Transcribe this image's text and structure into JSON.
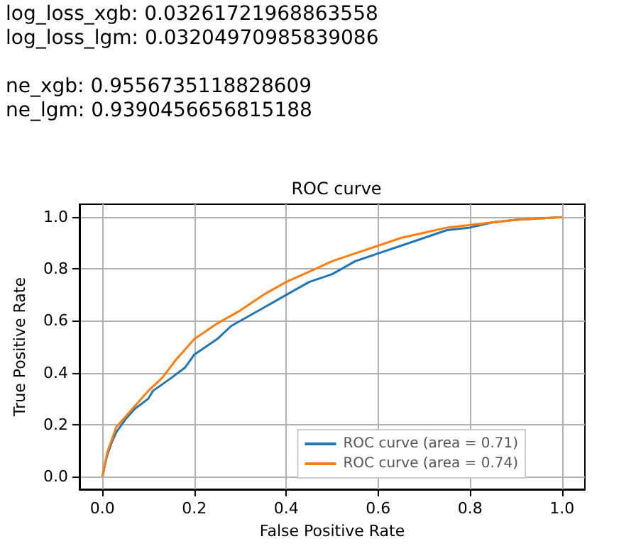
{
  "chart_data": {
    "type": "line",
    "title": "ROC curve",
    "xlabel": "False Positive Rate",
    "ylabel": "True Positive Rate",
    "annotations": [
      "log_loss_xgb: 0.03261721968863558\nlog_loss_lgm: 0.03204970985839086",
      "ne_xgb: 0.9556735118828609\nne_lgm: 0.9390456656815188"
    ],
    "series": [
      {
        "name": "ROC curve (area = 0.71)",
        "color": "#1f77b4",
        "x": [
          0,
          0.01,
          0.02,
          0.03,
          0.05,
          0.07,
          0.1,
          0.11,
          0.15,
          0.18,
          0.2,
          0.25,
          0.28,
          0.3,
          0.35,
          0.4,
          0.45,
          0.5,
          0.55,
          0.6,
          0.65,
          0.7,
          0.75,
          0.8,
          0.85,
          0.9,
          1
        ],
        "values": [
          0,
          0.08,
          0.13,
          0.17,
          0.22,
          0.26,
          0.3,
          0.33,
          0.38,
          0.42,
          0.47,
          0.53,
          0.58,
          0.6,
          0.65,
          0.7,
          0.75,
          0.78,
          0.83,
          0.86,
          0.89,
          0.92,
          0.95,
          0.96,
          0.98,
          0.99,
          1
        ]
      },
      {
        "name": "ROC curve (area = 0.74)",
        "color": "#ff7f0e",
        "x": [
          0,
          0.01,
          0.02,
          0.03,
          0.05,
          0.07,
          0.1,
          0.13,
          0.16,
          0.2,
          0.25,
          0.3,
          0.35,
          0.4,
          0.45,
          0.5,
          0.55,
          0.6,
          0.65,
          0.7,
          0.75,
          0.8,
          0.9,
          1
        ],
        "values": [
          0,
          0.09,
          0.14,
          0.19,
          0.23,
          0.27,
          0.33,
          0.38,
          0.45,
          0.53,
          0.59,
          0.64,
          0.7,
          0.75,
          0.79,
          0.83,
          0.86,
          0.89,
          0.92,
          0.94,
          0.96,
          0.97,
          0.99,
          1
        ]
      }
    ],
    "xlim": [
      -0.05,
      1.05
    ],
    "ylim": [
      -0.05,
      1.05
    ],
    "xticks": [
      {
        "value": 0,
        "label": "0.0"
      },
      0.2,
      0.4,
      0.6,
      0.8,
      {
        "value": 1,
        "label": "1.0"
      }
    ],
    "yticks": [
      {
        "value": 0,
        "label": "0.0"
      },
      0.2,
      0.4,
      0.6,
      0.8,
      {
        "value": 1,
        "label": "1.0"
      }
    ],
    "grid": true,
    "legend": "bottom right",
    "marker": "none",
    "line_style": "solid"
  }
}
